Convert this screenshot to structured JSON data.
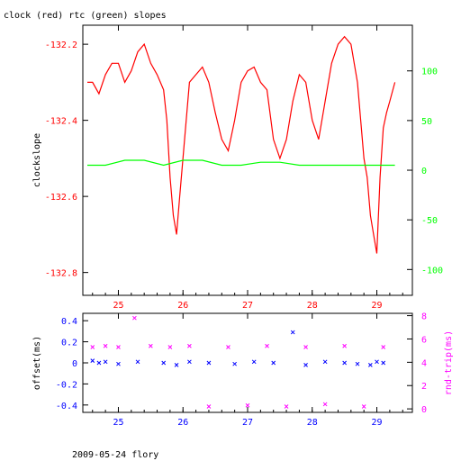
{
  "title": "clock (red) rtc (green) slopes",
  "footer": "2009-05-24 flory",
  "colors": {
    "red": "#ff0000",
    "green": "#00ff00",
    "blue": "#0000ff",
    "magenta": "#ff00ff",
    "black": "#000000"
  },
  "chart_data": [
    {
      "type": "line",
      "title": "clock (red) rtc (green) slopes",
      "ylabel": "clockslope",
      "xlim": [
        24.45,
        29.55
      ],
      "x_ticks": [
        25,
        26,
        27,
        28,
        29
      ],
      "x_tick_labels": [
        "25",
        "26",
        "27",
        "28",
        "29"
      ],
      "y_left": {
        "lim": [
          -132.86,
          -132.15
        ],
        "ticks": [
          -132.2,
          -132.4,
          -132.6,
          -132.8
        ],
        "tick_labels": [
          "-132.2",
          "-132.4",
          "-132.6",
          "-132.8"
        ]
      },
      "y_right": {
        "lim": [
          -126,
          146
        ],
        "ticks": [
          100,
          50,
          0,
          -50,
          -100
        ],
        "tick_labels": [
          "100",
          "50",
          "0",
          "-50",
          "-100"
        ]
      },
      "series": [
        {
          "axis": "left",
          "color": "#ff0000",
          "x": [
            24.52,
            24.6,
            24.7,
            24.8,
            24.9,
            25.0,
            25.1,
            25.2,
            25.3,
            25.4,
            25.5,
            25.6,
            25.7,
            25.75,
            25.8,
            25.85,
            25.9,
            25.95,
            26.0,
            26.1,
            26.2,
            26.3,
            26.4,
            26.5,
            26.6,
            26.7,
            26.8,
            26.9,
            27.0,
            27.1,
            27.2,
            27.3,
            27.4,
            27.5,
            27.6,
            27.7,
            27.8,
            27.9,
            28.0,
            28.1,
            28.2,
            28.3,
            28.4,
            28.5,
            28.6,
            28.7,
            28.75,
            28.8,
            28.85,
            28.9,
            28.95,
            29.0,
            29.05,
            29.1,
            29.15,
            29.2,
            29.28
          ],
          "y": [
            -132.3,
            -132.3,
            -132.33,
            -132.28,
            -132.25,
            -132.25,
            -132.3,
            -132.27,
            -132.22,
            -132.2,
            -132.25,
            -132.28,
            -132.32,
            -132.4,
            -132.55,
            -132.65,
            -132.7,
            -132.6,
            -132.5,
            -132.3,
            -132.28,
            -132.26,
            -132.3,
            -132.38,
            -132.45,
            -132.48,
            -132.4,
            -132.3,
            -132.27,
            -132.26,
            -132.3,
            -132.32,
            -132.45,
            -132.5,
            -132.45,
            -132.35,
            -132.28,
            -132.3,
            -132.4,
            -132.45,
            -132.35,
            -132.25,
            -132.2,
            -132.18,
            -132.2,
            -132.3,
            -132.4,
            -132.5,
            -132.55,
            -132.65,
            -132.7,
            -132.75,
            -132.55,
            -132.42,
            -132.38,
            -132.35,
            -132.3
          ]
        },
        {
          "axis": "right",
          "color": "#00ff00",
          "x": [
            24.52,
            24.8,
            25.1,
            25.4,
            25.7,
            26.0,
            26.3,
            26.6,
            26.9,
            27.2,
            27.5,
            27.8,
            28.1,
            28.4,
            28.7,
            29.0,
            29.28
          ],
          "y": [
            5,
            5,
            10,
            10,
            5,
            10,
            10,
            5,
            5,
            8,
            8,
            5,
            5,
            5,
            5,
            5,
            5
          ]
        }
      ]
    },
    {
      "type": "scatter",
      "ylabel": "offset(ms)",
      "y2label": "rnd-trip(ms)",
      "xlim": [
        24.45,
        29.55
      ],
      "x_ticks": [
        25,
        26,
        27,
        28,
        29
      ],
      "x_tick_labels": [
        "25",
        "26",
        "27",
        "28",
        "29"
      ],
      "y_left": {
        "lim": [
          -0.47,
          0.47
        ],
        "ticks": [
          0.4,
          0.2,
          0,
          -0.2,
          -0.4
        ],
        "tick_labels": [
          "0.4",
          "0.2",
          "0",
          "-0.2",
          "-0.4"
        ]
      },
      "y_right": {
        "lim": [
          -0.3,
          8.2
        ],
        "ticks": [
          8,
          6,
          4,
          2,
          0
        ],
        "tick_labels": [
          "8",
          "6",
          "4",
          "2",
          "0"
        ]
      },
      "series": [
        {
          "axis": "left",
          "color": "#0000ff",
          "marker": "x",
          "x": [
            24.6,
            24.7,
            24.8,
            25.0,
            25.3,
            25.7,
            25.9,
            26.1,
            26.4,
            26.8,
            27.1,
            27.4,
            27.7,
            27.9,
            28.2,
            28.5,
            28.7,
            28.9,
            29.0,
            29.1
          ],
          "y": [
            0.02,
            0.0,
            0.01,
            -0.01,
            0.01,
            0.0,
            -0.02,
            0.01,
            0.0,
            -0.01,
            0.01,
            0.0,
            0.29,
            -0.02,
            0.01,
            0.0,
            -0.01,
            -0.02,
            0.01,
            0.0
          ]
        },
        {
          "axis": "right",
          "color": "#ff00ff",
          "marker": "x",
          "x": [
            24.6,
            24.8,
            25.0,
            25.25,
            25.5,
            25.8,
            26.1,
            26.4,
            26.7,
            27.0,
            27.3,
            27.6,
            27.9,
            28.2,
            28.5,
            28.8,
            29.1
          ],
          "y": [
            5.3,
            5.4,
            5.3,
            7.8,
            5.4,
            5.3,
            5.4,
            0.2,
            5.3,
            0.3,
            5.4,
            0.2,
            5.3,
            0.4,
            5.4,
            0.2,
            5.3
          ]
        }
      ]
    }
  ]
}
